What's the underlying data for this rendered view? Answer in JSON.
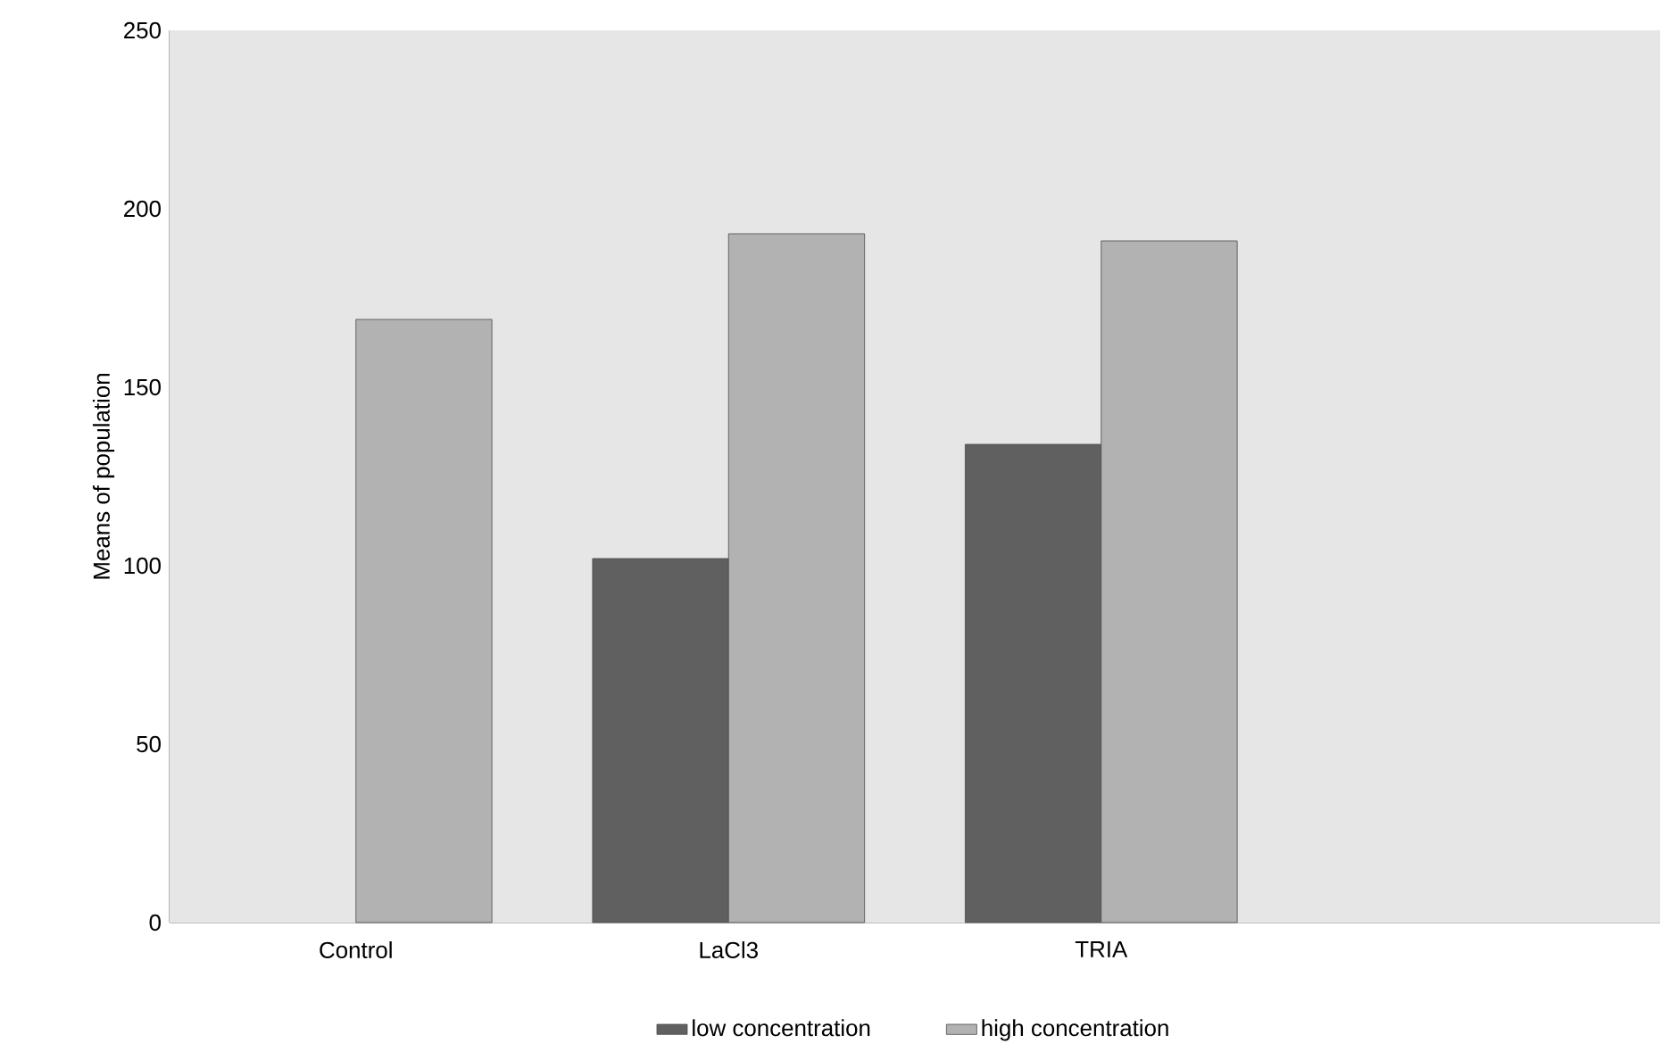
{
  "chart_data": {
    "type": "bar",
    "ylabel": "Means of population",
    "categories": [
      "Control",
      "LaCl3",
      "TRIA",
      null
    ],
    "series": [
      {
        "name": "low concentration",
        "color": "#606060",
        "values": [
          null,
          102,
          134,
          null
        ]
      },
      {
        "name": "high concentration",
        "color": "#b2b2b2",
        "values": [
          169,
          193,
          191,
          null
        ]
      }
    ],
    "ylim": [
      0,
      250
    ],
    "yticks": [
      0,
      50,
      100,
      150,
      200,
      250
    ],
    "grid": false,
    "legend": "bottom"
  }
}
